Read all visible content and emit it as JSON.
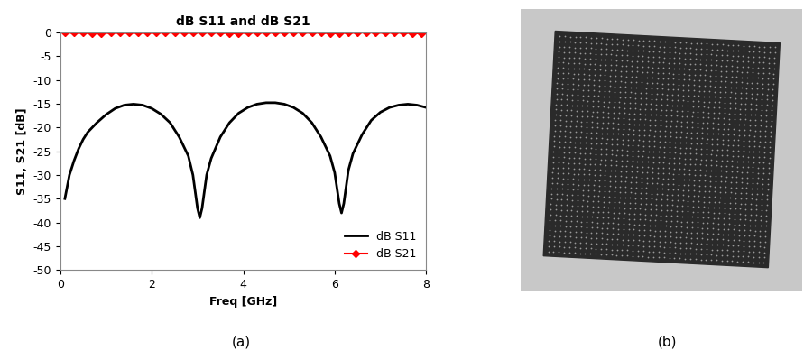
{
  "chart_data": {
    "type": "line",
    "title": "dB S11 and dB S21",
    "x_label": "Freq [GHz]",
    "y_label": "S11, S21 [dB]",
    "xlim": [
      0,
      8
    ],
    "xticks": [
      0,
      2,
      4,
      6,
      8
    ],
    "ylim": [
      -50,
      0
    ],
    "yticks": [
      0,
      -5,
      -10,
      -15,
      -20,
      -25,
      -30,
      -35,
      -40,
      -45,
      -50
    ],
    "grid": false,
    "legend": "lower right",
    "series": [
      {
        "name": "dB S11",
        "color": "#000000",
        "line_style": "solid",
        "x": [
          0.1,
          0.2,
          0.3,
          0.4,
          0.5,
          0.6,
          0.8,
          1.0,
          1.2,
          1.4,
          1.6,
          1.8,
          2.0,
          2.2,
          2.4,
          2.6,
          2.8,
          2.9,
          3.0,
          3.05,
          3.1,
          3.2,
          3.3,
          3.5,
          3.7,
          3.9,
          4.1,
          4.3,
          4.5,
          4.7,
          4.9,
          5.1,
          5.3,
          5.5,
          5.7,
          5.9,
          6.0,
          6.1,
          6.15,
          6.2,
          6.3,
          6.4,
          6.6,
          6.8,
          7.0,
          7.2,
          7.4,
          7.6,
          7.8,
          8.0
        ],
        "values": [
          -35,
          -30,
          -27,
          -24.5,
          -22.5,
          -21,
          -19,
          -17.3,
          -16,
          -15.3,
          -15.1,
          -15.3,
          -16,
          -17.2,
          -19,
          -22,
          -26,
          -30,
          -37,
          -39,
          -37,
          -30,
          -26.5,
          -22,
          -19,
          -17,
          -15.8,
          -15.1,
          -14.8,
          -14.8,
          -15.1,
          -15.8,
          -17,
          -19,
          -22,
          -26,
          -29.5,
          -36,
          -38,
          -36,
          -29,
          -25.5,
          -21.5,
          -18.5,
          -16.8,
          -15.8,
          -15.3,
          -15.1,
          -15.3,
          -15.8
        ]
      },
      {
        "name": "dB S21",
        "color": "#ff0000",
        "line_style": "solid",
        "marker": "diamond",
        "x": [
          0.1,
          0.3,
          0.5,
          0.7,
          0.9,
          1.1,
          1.3,
          1.5,
          1.7,
          1.9,
          2.1,
          2.3,
          2.5,
          2.7,
          2.9,
          3.1,
          3.3,
          3.5,
          3.7,
          3.9,
          4.1,
          4.3,
          4.5,
          4.7,
          4.9,
          5.1,
          5.3,
          5.5,
          5.7,
          5.9,
          6.1,
          6.3,
          6.5,
          6.7,
          6.9,
          7.1,
          7.3,
          7.5,
          7.7,
          7.9
        ],
        "values": [
          -0.1,
          -0.1,
          -0.1,
          -0.2,
          -0.2,
          -0.1,
          -0.1,
          -0.1,
          -0.1,
          -0.1,
          -0.1,
          -0.1,
          0,
          -0.1,
          -0.1,
          -0.1,
          -0.1,
          -0.1,
          -0.2,
          -0.2,
          -0.1,
          -0.1,
          -0.1,
          -0.1,
          -0.1,
          0,
          -0.1,
          -0.1,
          -0.1,
          -0.2,
          -0.2,
          -0.1,
          -0.1,
          0,
          -0.1,
          -0.1,
          -0.1,
          -0.1,
          -0.2,
          -0.2
        ]
      }
    ]
  },
  "panel_labels": [
    "(a)",
    "(b)"
  ]
}
